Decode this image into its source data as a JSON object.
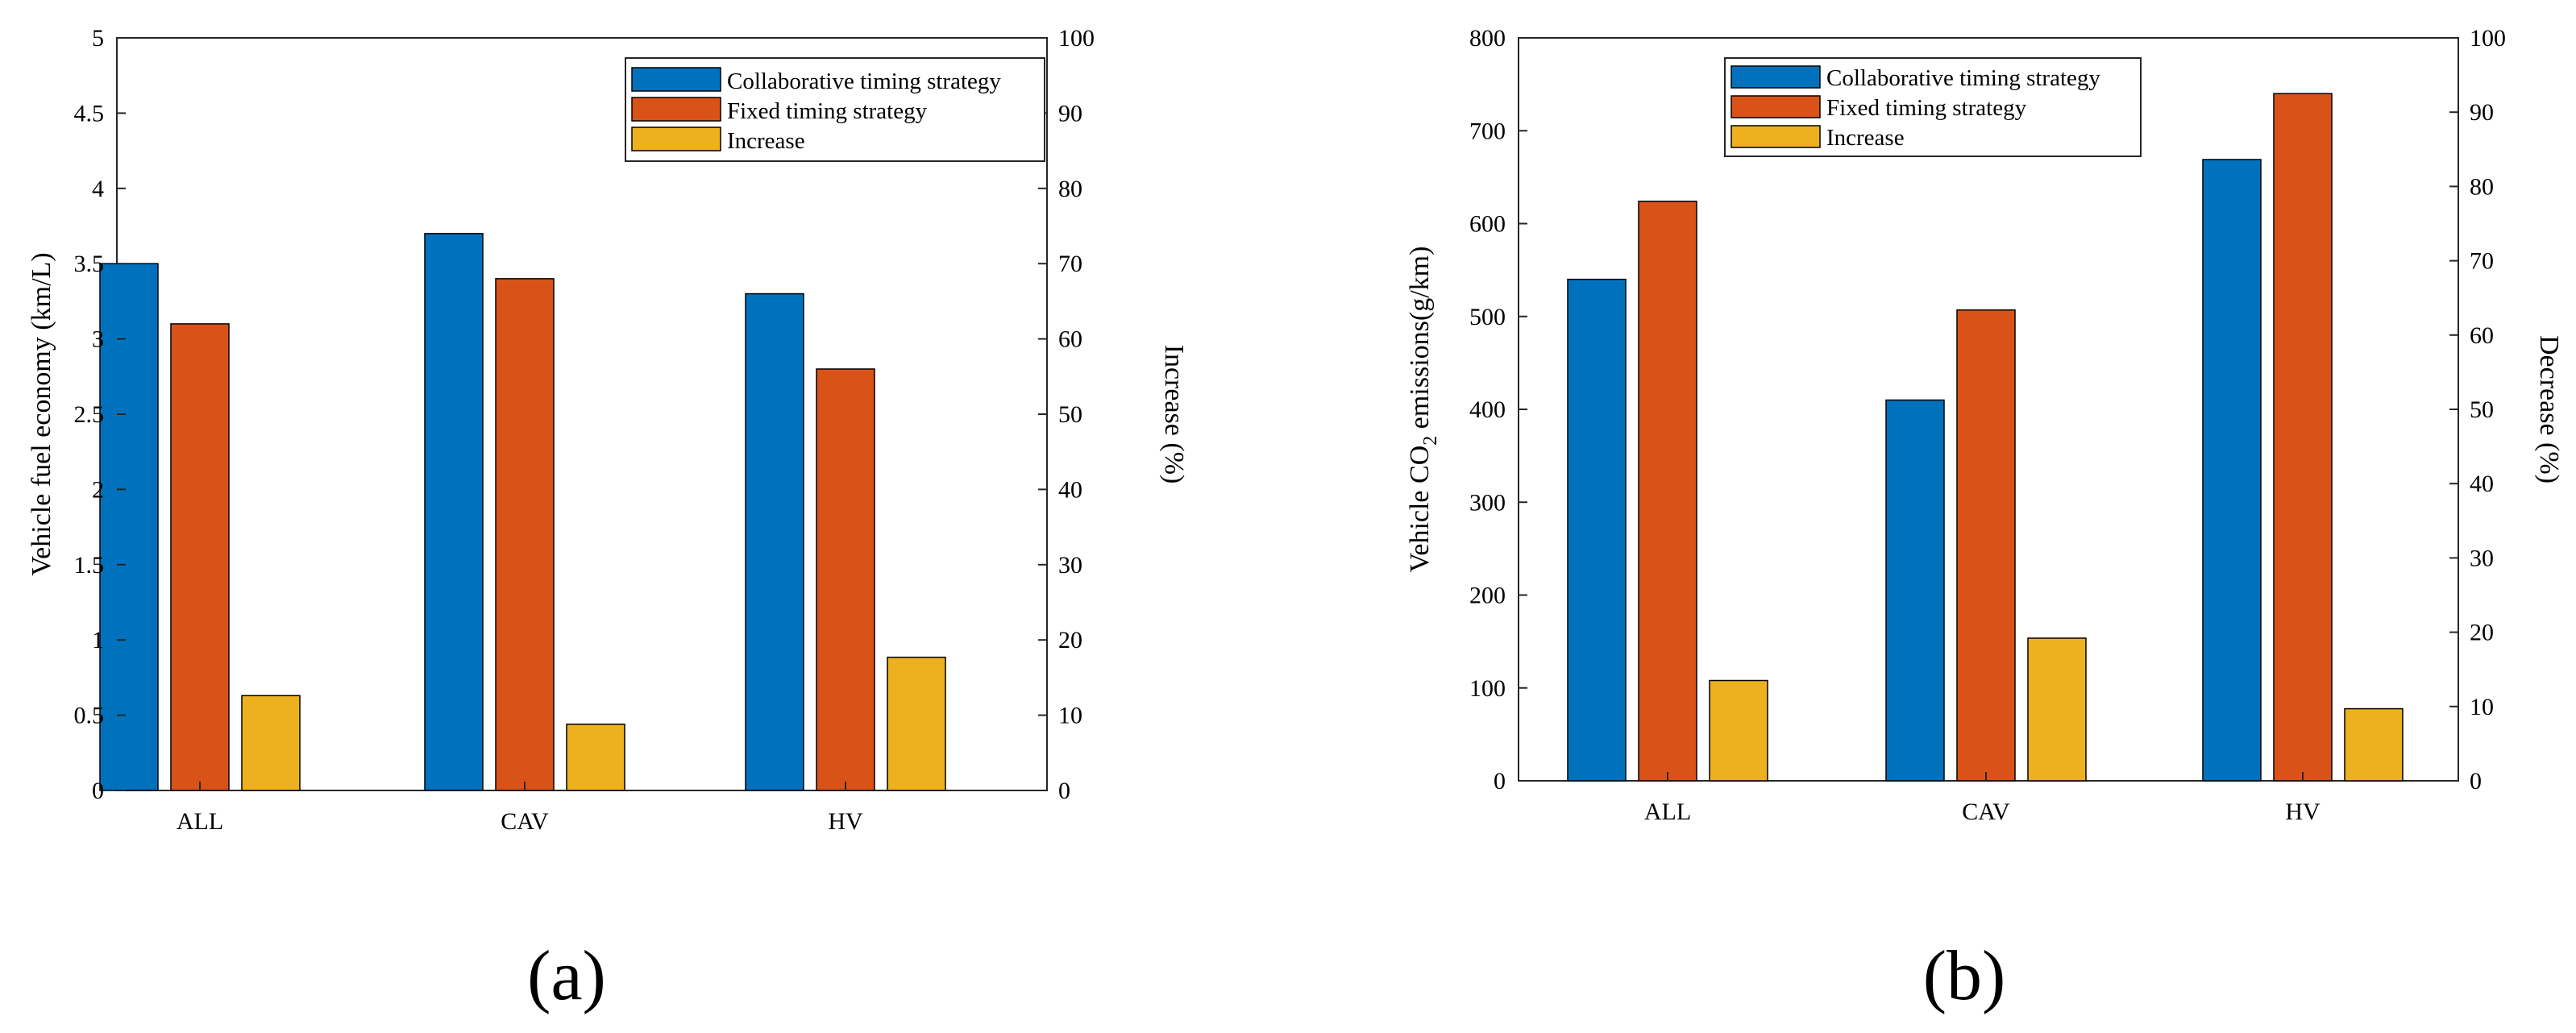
{
  "colors": {
    "series1": "#0072BD",
    "series2": "#D95319",
    "series3": "#EDB120"
  },
  "chart_data": [
    {
      "type": "bar",
      "panel_label": "(a)",
      "categories": [
        "ALL",
        "CAV",
        "HV"
      ],
      "series": [
        {
          "name": "Collaborative timing strategy",
          "axis": "left",
          "values": [
            3.5,
            3.7,
            3.3
          ]
        },
        {
          "name": "Fixed timing strategy",
          "axis": "left",
          "values": [
            3.1,
            3.4,
            2.8
          ]
        },
        {
          "name": "Increase",
          "axis": "right",
          "values": [
            12.6,
            8.8,
            17.7
          ]
        }
      ],
      "ylabel": "Vehicle fuel economy (km/L)",
      "ylim": [
        0,
        5
      ],
      "yticks": [
        0,
        0.5,
        1,
        1.5,
        2,
        2.5,
        3,
        3.5,
        4,
        4.5,
        5
      ],
      "ytick_labels": [
        "0",
        "0.5",
        "1",
        "1.5",
        "2",
        "2.5",
        "3",
        "3.5",
        "4",
        "4.5",
        "5"
      ],
      "y2label": "Increase (%)",
      "y2lim": [
        0,
        100
      ],
      "y2ticks": [
        0,
        10,
        20,
        30,
        40,
        50,
        60,
        70,
        80,
        90,
        100
      ],
      "y2tick_labels": [
        "0",
        "10",
        "20",
        "30",
        "40",
        "50",
        "60",
        "70",
        "80",
        "90",
        "100"
      ],
      "legend": "top-right",
      "grid": false
    },
    {
      "type": "bar",
      "panel_label": "(b)",
      "categories": [
        "ALL",
        "CAV",
        "HV"
      ],
      "series": [
        {
          "name": "Collaborative timing strategy",
          "axis": "left",
          "values": [
            540,
            410,
            669
          ]
        },
        {
          "name": "Fixed timing strategy",
          "axis": "left",
          "values": [
            624,
            507,
            740
          ]
        },
        {
          "name": "Increase",
          "axis": "right",
          "values": [
            13.5,
            19.2,
            9.7
          ]
        }
      ],
      "ylabel_prefix": "Vehicle CO",
      "ylabel_sub": "2",
      "ylabel_suffix": " emissions(g/km)",
      "ylim": [
        0,
        800
      ],
      "yticks": [
        0,
        100,
        200,
        300,
        400,
        500,
        600,
        700,
        800
      ],
      "ytick_labels": [
        "0",
        "100",
        "200",
        "300",
        "400",
        "500",
        "600",
        "700",
        "800"
      ],
      "y2label": "Decrease (%)",
      "y2lim": [
        0,
        100
      ],
      "y2ticks": [
        0,
        10,
        20,
        30,
        40,
        50,
        60,
        70,
        80,
        90,
        100
      ],
      "y2tick_labels": [
        "0",
        "10",
        "20",
        "30",
        "40",
        "50",
        "60",
        "70",
        "80",
        "90",
        "100"
      ],
      "legend": "top-left",
      "grid": false
    }
  ]
}
